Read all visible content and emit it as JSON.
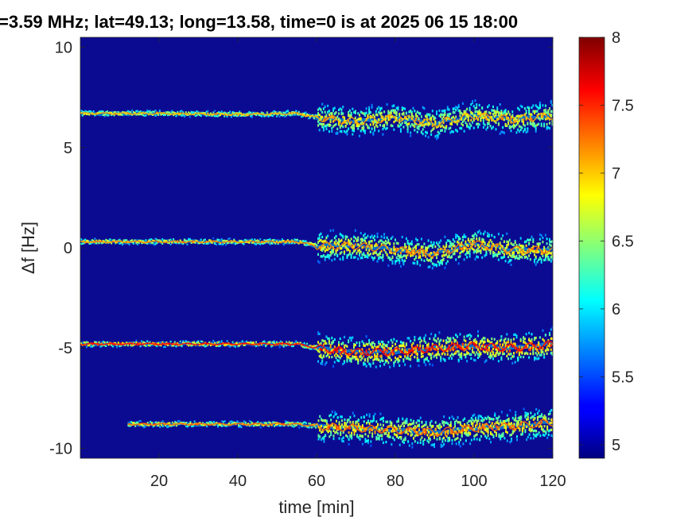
{
  "chart_data": {
    "type": "heatmap",
    "title": "=3.59 MHz;  lat=49.13; long=13.58, time=0 is at 2025 06 15 18:00",
    "xlabel": "time [min]",
    "ylabel": "Δf [Hz]",
    "xlim": [
      0,
      120
    ],
    "ylim": [
      -10.5,
      10.5
    ],
    "x_ticks": [
      "20",
      "40",
      "60",
      "80",
      "100",
      "120"
    ],
    "x_tick_values": [
      20,
      40,
      60,
      80,
      100,
      120
    ],
    "y_ticks": [
      "-10",
      "-5",
      "0",
      "5",
      "10"
    ],
    "y_tick_values": [
      -10,
      -5,
      0,
      5,
      10
    ],
    "colorbar": {
      "colormap": "jet",
      "range": [
        4.9,
        8
      ],
      "ticks": [
        "5",
        "5.5",
        "6",
        "6.5",
        "7",
        "7.5",
        "8"
      ],
      "tick_values": [
        5,
        5.5,
        6,
        6.5,
        7,
        7.5,
        8
      ]
    },
    "background_level": 5,
    "traces": [
      {
        "center_hz": 6.7,
        "start_min": 0,
        "end_min": 120,
        "points": [
          [
            0,
            6.7
          ],
          [
            20,
            6.7
          ],
          [
            40,
            6.65
          ],
          [
            55,
            6.7
          ],
          [
            60,
            6.5
          ],
          [
            70,
            6.3
          ],
          [
            80,
            6.5
          ],
          [
            90,
            6.2
          ],
          [
            100,
            6.6
          ],
          [
            110,
            6.4
          ],
          [
            120,
            6.6
          ]
        ],
        "peak_level": 7.4
      },
      {
        "center_hz": 0.3,
        "start_min": 0,
        "end_min": 120,
        "points": [
          [
            0,
            0.3
          ],
          [
            20,
            0.3
          ],
          [
            40,
            0.3
          ],
          [
            55,
            0.3
          ],
          [
            60,
            0.1
          ],
          [
            70,
            0.1
          ],
          [
            80,
            -0.1
          ],
          [
            90,
            -0.3
          ],
          [
            100,
            0.2
          ],
          [
            110,
            -0.1
          ],
          [
            120,
            -0.1
          ]
        ],
        "peak_level": 7.5
      },
      {
        "center_hz": -4.8,
        "start_min": 0,
        "end_min": 120,
        "points": [
          [
            0,
            -4.8
          ],
          [
            20,
            -4.8
          ],
          [
            40,
            -4.8
          ],
          [
            55,
            -4.8
          ],
          [
            60,
            -5.0
          ],
          [
            70,
            -5.2
          ],
          [
            80,
            -5.2
          ],
          [
            90,
            -5.0
          ],
          [
            100,
            -4.9
          ],
          [
            110,
            -5.0
          ],
          [
            120,
            -4.8
          ]
        ],
        "peak_level": 7.9
      },
      {
        "center_hz": -8.8,
        "start_min": 12,
        "end_min": 120,
        "points": [
          [
            12,
            -8.8
          ],
          [
            20,
            -8.8
          ],
          [
            40,
            -8.8
          ],
          [
            55,
            -8.8
          ],
          [
            60,
            -8.9
          ],
          [
            70,
            -9.0
          ],
          [
            80,
            -9.1
          ],
          [
            90,
            -9.2
          ],
          [
            100,
            -9.0
          ],
          [
            110,
            -8.9
          ],
          [
            120,
            -8.7
          ]
        ],
        "peak_level": 7.6
      }
    ]
  }
}
